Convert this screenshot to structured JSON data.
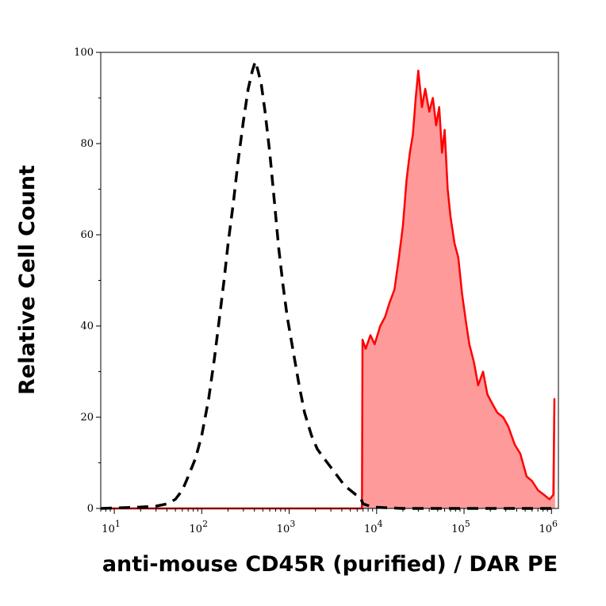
{
  "chart_data": {
    "type": "area",
    "title": "",
    "xlabel": "anti-mouse CD45R (purified) / DAR PE",
    "ylabel": "Relative Cell Count",
    "x_scale": "log",
    "xlim": [
      7,
      1200000
    ],
    "ylim": [
      0,
      100
    ],
    "x_ticks": [
      {
        "value": 10,
        "base": "10",
        "exp": "1"
      },
      {
        "value": 100,
        "base": "10",
        "exp": "2"
      },
      {
        "value": 1000,
        "base": "10",
        "exp": "3"
      },
      {
        "value": 10000,
        "base": "10",
        "exp": "4"
      },
      {
        "value": 100000,
        "base": "10",
        "exp": "5"
      },
      {
        "value": 1000000,
        "base": "10",
        "exp": "6"
      }
    ],
    "y_ticks": [
      {
        "value": 0,
        "label": "0"
      },
      {
        "value": 20,
        "label": "20"
      },
      {
        "value": 40,
        "label": "40"
      },
      {
        "value": 60,
        "label": "60"
      },
      {
        "value": 80,
        "label": "80"
      },
      {
        "value": 100,
        "label": "100"
      }
    ],
    "grid": false,
    "series": [
      {
        "style": "dashed",
        "color": "#000000",
        "fill": "none",
        "points": [
          [
            7,
            0
          ],
          [
            20,
            0.3
          ],
          [
            30,
            0.5
          ],
          [
            40,
            1
          ],
          [
            50,
            2
          ],
          [
            60,
            4
          ],
          [
            70,
            7
          ],
          [
            85,
            11
          ],
          [
            100,
            16
          ],
          [
            120,
            24
          ],
          [
            140,
            33
          ],
          [
            160,
            42
          ],
          [
            180,
            50
          ],
          [
            200,
            58
          ],
          [
            230,
            67
          ],
          [
            260,
            76
          ],
          [
            300,
            85
          ],
          [
            340,
            92
          ],
          [
            380,
            96
          ],
          [
            410,
            98
          ],
          [
            440,
            96
          ],
          [
            480,
            93
          ],
          [
            530,
            87
          ],
          [
            600,
            78
          ],
          [
            680,
            67
          ],
          [
            760,
            57
          ],
          [
            850,
            49
          ],
          [
            950,
            42
          ],
          [
            1100,
            35
          ],
          [
            1300,
            27
          ],
          [
            1500,
            21
          ],
          [
            1800,
            16
          ],
          [
            2100,
            13
          ],
          [
            2500,
            11
          ],
          [
            3000,
            9
          ],
          [
            3600,
            7
          ],
          [
            4300,
            5
          ],
          [
            5000,
            4
          ],
          [
            5800,
            3
          ],
          [
            6500,
            2.5
          ],
          [
            7000,
            1
          ],
          [
            9000,
            0.3
          ],
          [
            20000,
            0
          ],
          [
            1000000,
            0
          ]
        ]
      },
      {
        "style": "solid",
        "color": "#ff0000",
        "fill": "#ff9a9a",
        "points": [
          [
            7,
            0
          ],
          [
            6800,
            0
          ],
          [
            6900,
            37
          ],
          [
            7500,
            35
          ],
          [
            8500,
            38
          ],
          [
            9500,
            36
          ],
          [
            11000,
            40
          ],
          [
            12500,
            42
          ],
          [
            14000,
            45
          ],
          [
            16000,
            48
          ],
          [
            18000,
            55
          ],
          [
            20000,
            62
          ],
          [
            22000,
            72
          ],
          [
            24000,
            78
          ],
          [
            26000,
            82
          ],
          [
            28000,
            90
          ],
          [
            30000,
            96
          ],
          [
            33000,
            88
          ],
          [
            36000,
            92
          ],
          [
            40000,
            87
          ],
          [
            44000,
            90
          ],
          [
            48000,
            84
          ],
          [
            52000,
            88
          ],
          [
            56000,
            78
          ],
          [
            60000,
            83
          ],
          [
            65000,
            70
          ],
          [
            70000,
            64
          ],
          [
            78000,
            58
          ],
          [
            86000,
            55
          ],
          [
            95000,
            47
          ],
          [
            105000,
            41
          ],
          [
            115000,
            36
          ],
          [
            130000,
            32
          ],
          [
            145000,
            27
          ],
          [
            165000,
            30
          ],
          [
            185000,
            25
          ],
          [
            210000,
            23
          ],
          [
            240000,
            21
          ],
          [
            280000,
            20
          ],
          [
            320000,
            18
          ],
          [
            380000,
            14
          ],
          [
            440000,
            12
          ],
          [
            520000,
            7
          ],
          [
            600000,
            6
          ],
          [
            700000,
            4
          ],
          [
            820000,
            3
          ],
          [
            950000,
            2
          ],
          [
            1050000,
            3
          ],
          [
            1080000,
            24
          ],
          [
            1100000,
            24
          ]
        ]
      }
    ]
  }
}
